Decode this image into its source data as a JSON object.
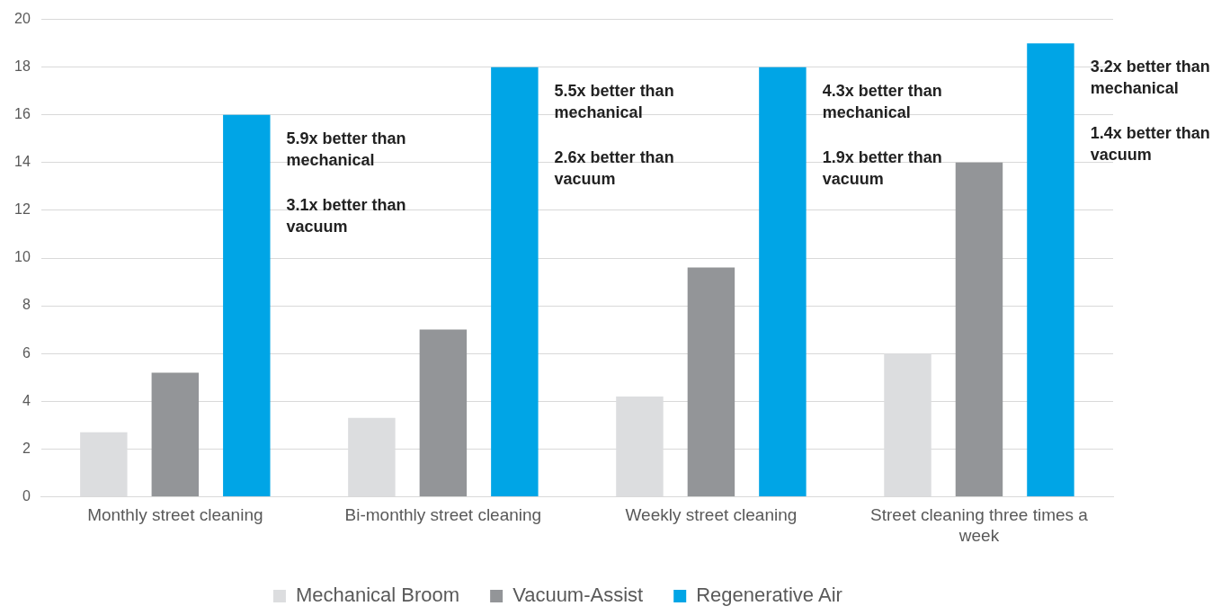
{
  "chart_data": {
    "type": "bar",
    "categories": [
      "Monthly street cleaning",
      "Bi-monthly street cleaning",
      "Weekly street cleaning",
      "Street cleaning three times a week"
    ],
    "series": [
      {
        "name": "Mechanical Broom",
        "color": "#dcdddf",
        "values": [
          2.7,
          3.3,
          4.2,
          6
        ]
      },
      {
        "name": "Vacuum-Assist",
        "color": "#939598",
        "values": [
          5.2,
          7,
          9.6,
          14
        ]
      },
      {
        "name": "Regenerative Air",
        "color": "#00a5e6",
        "values": [
          16,
          18,
          18,
          19
        ]
      }
    ],
    "ylim": [
      0,
      20
    ],
    "yticks": [
      0,
      2,
      4,
      6,
      8,
      10,
      12,
      14,
      16,
      18,
      20
    ],
    "grid": "y",
    "legend": "bottom",
    "annotations": [
      "5.9x better than mechanical",
      "3.1x better than vacuum",
      "5.5x better than mechanical",
      "2.6x better than vacuum",
      "4.3x better than mechanical",
      "1.9x better than vacuum",
      "3.2x better than mechanical",
      "1.4x better than vacuum"
    ]
  }
}
